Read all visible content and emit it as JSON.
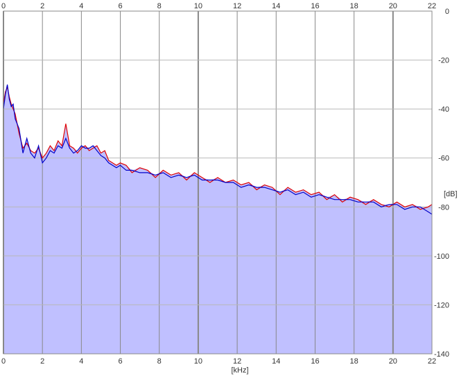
{
  "chart_data": {
    "type": "area",
    "x_unit_label": "[kHz]",
    "y_unit_label": "[dB]",
    "xlim": [
      0,
      22
    ],
    "ylim": [
      -140,
      0
    ],
    "x_ticks": [
      0,
      2,
      4,
      6,
      8,
      10,
      12,
      14,
      16,
      18,
      20,
      22
    ],
    "x_tick_labels": [
      "0",
      "2",
      "4",
      "6",
      "8",
      "10",
      "12",
      "14",
      "16",
      "18",
      "20",
      "22"
    ],
    "y_ticks": [
      0,
      -20,
      -40,
      -60,
      -80,
      -100,
      -120,
      -140
    ],
    "y_tick_labels": [
      "0",
      "-20",
      "-40",
      "-60",
      "-80",
      "-100",
      "-120",
      "-140"
    ],
    "grid": true,
    "fill_color": "#c0c0ff",
    "grid_color": "#888888",
    "series": [
      {
        "color": "#e00000",
        "x": [
          0.0,
          0.1,
          0.2,
          0.3,
          0.4,
          0.5,
          0.6,
          0.8,
          1.0,
          1.2,
          1.4,
          1.6,
          1.8,
          2.0,
          2.2,
          2.4,
          2.6,
          2.8,
          3.0,
          3.2,
          3.4,
          3.6,
          3.8,
          4.0,
          4.2,
          4.4,
          4.6,
          4.8,
          5.0,
          5.2,
          5.4,
          5.6,
          5.8,
          6.0,
          6.3,
          6.6,
          7.0,
          7.4,
          7.8,
          8.2,
          8.6,
          9.0,
          9.4,
          9.8,
          10.2,
          10.6,
          11.0,
          11.4,
          11.8,
          12.2,
          12.6,
          13.0,
          13.4,
          13.8,
          14.2,
          14.6,
          15.0,
          15.4,
          15.8,
          16.2,
          16.6,
          17.0,
          17.4,
          17.8,
          18.2,
          18.6,
          19.0,
          19.4,
          19.8,
          20.2,
          20.6,
          21.0,
          21.4,
          21.8,
          22.0
        ],
        "values": [
          -38,
          -33,
          -31,
          -35,
          -38,
          -40,
          -42,
          -50,
          -56,
          -54,
          -57,
          -58,
          -56,
          -60,
          -58,
          -55,
          -57,
          -53,
          -55,
          -46,
          -55,
          -56,
          -58,
          -56,
          -55,
          -57,
          -56,
          -55,
          -58,
          -57,
          -61,
          -62,
          -63,
          -62,
          -63,
          -66,
          -64,
          -65,
          -68,
          -65,
          -67,
          -66,
          -69,
          -66,
          -68,
          -70,
          -68,
          -70,
          -69,
          -71,
          -70,
          -73,
          -71,
          -72,
          -75,
          -72,
          -74,
          -73,
          -75,
          -74,
          -77,
          -75,
          -78,
          -76,
          -77,
          -79,
          -77,
          -79,
          -80,
          -78,
          -80,
          -79,
          -81,
          -80,
          -79
        ]
      },
      {
        "color": "#0000c8",
        "x": [
          0.0,
          0.1,
          0.2,
          0.3,
          0.4,
          0.5,
          0.6,
          0.8,
          1.0,
          1.2,
          1.4,
          1.6,
          1.8,
          2.0,
          2.2,
          2.4,
          2.6,
          2.8,
          3.0,
          3.2,
          3.4,
          3.6,
          3.8,
          4.0,
          4.2,
          4.4,
          4.6,
          4.8,
          5.0,
          5.2,
          5.4,
          5.6,
          5.8,
          6.0,
          6.3,
          6.6,
          7.0,
          7.4,
          7.8,
          8.2,
          8.6,
          9.0,
          9.4,
          9.8,
          10.2,
          10.6,
          11.0,
          11.4,
          11.8,
          12.2,
          12.6,
          13.0,
          13.4,
          13.8,
          14.2,
          14.6,
          15.0,
          15.4,
          15.8,
          16.2,
          16.6,
          17.0,
          17.4,
          17.8,
          18.2,
          18.6,
          19.0,
          19.4,
          19.8,
          20.2,
          20.6,
          21.0,
          21.4,
          21.8,
          22.0
        ],
        "values": [
          -40,
          -34,
          -30,
          -36,
          -39,
          -38,
          -44,
          -48,
          -58,
          -52,
          -58,
          -60,
          -55,
          -62,
          -60,
          -57,
          -58,
          -55,
          -56,
          -52,
          -56,
          -58,
          -57,
          -55,
          -56,
          -56,
          -55,
          -57,
          -59,
          -60,
          -62,
          -63,
          -64,
          -63,
          -65,
          -65,
          -66,
          -66,
          -67,
          -66,
          -68,
          -67,
          -68,
          -67,
          -69,
          -69,
          -69,
          -70,
          -70,
          -72,
          -71,
          -72,
          -72,
          -73,
          -74,
          -73,
          -75,
          -74,
          -76,
          -75,
          -76,
          -77,
          -77,
          -77,
          -78,
          -78,
          -78,
          -80,
          -79,
          -79,
          -81,
          -80,
          -80,
          -82,
          -83
        ]
      }
    ]
  }
}
